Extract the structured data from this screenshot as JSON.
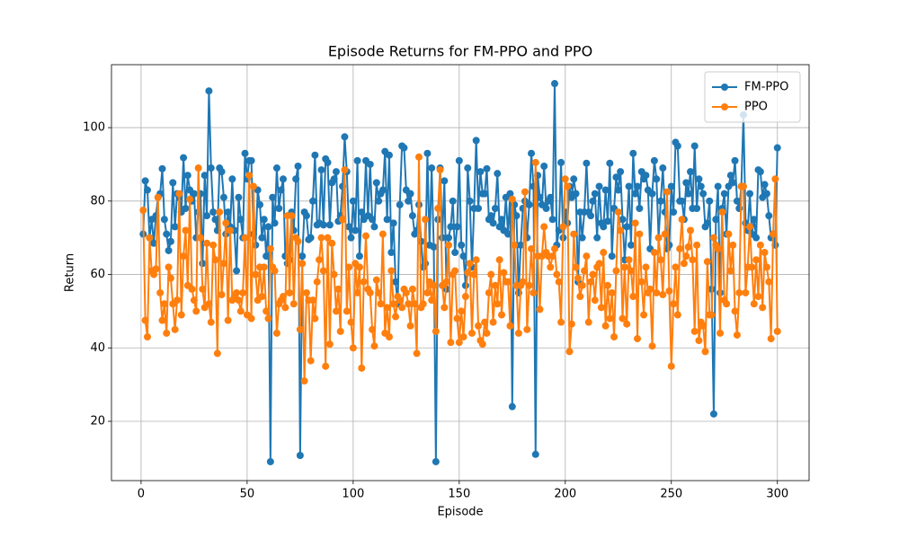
{
  "chart_data": {
    "type": "line",
    "title": "Episode Returns for FM-PPO and PPO",
    "xlabel": "Episode",
    "ylabel": "Return",
    "xlim": [
      -13.95,
      314.95
    ],
    "ylim": [
      3.85,
      117.15
    ],
    "xticks": [
      0,
      50,
      100,
      150,
      200,
      250,
      300
    ],
    "yticks": [
      20,
      40,
      60,
      80,
      100
    ],
    "grid": true,
    "legend": "upper right",
    "x": [
      1,
      2,
      3,
      4,
      5,
      6,
      7,
      8,
      9,
      10,
      11,
      12,
      13,
      14,
      15,
      16,
      17,
      18,
      19,
      20,
      21,
      22,
      23,
      24,
      25,
      26,
      27,
      28,
      29,
      30,
      31,
      32,
      33,
      34,
      35,
      36,
      37,
      38,
      39,
      40,
      41,
      42,
      43,
      44,
      45,
      46,
      47,
      48,
      49,
      50,
      51,
      52,
      53,
      54,
      55,
      56,
      57,
      58,
      59,
      60,
      61,
      62,
      63,
      64,
      65,
      66,
      67,
      68,
      69,
      70,
      71,
      72,
      73,
      74,
      75,
      76,
      77,
      78,
      79,
      80,
      81,
      82,
      83,
      84,
      85,
      86,
      87,
      88,
      89,
      90,
      91,
      92,
      93,
      94,
      95,
      96,
      97,
      98,
      99,
      100,
      101,
      102,
      103,
      104,
      105,
      106,
      107,
      108,
      109,
      110,
      111,
      112,
      113,
      114,
      115,
      116,
      117,
      118,
      119,
      120,
      121,
      122,
      123,
      124,
      125,
      126,
      127,
      128,
      129,
      130,
      131,
      132,
      133,
      134,
      135,
      136,
      137,
      138,
      139,
      140,
      141,
      142,
      143,
      144,
      145,
      146,
      147,
      148,
      149,
      150,
      151,
      152,
      153,
      154,
      155,
      156,
      157,
      158,
      159,
      160,
      161,
      162,
      163,
      164,
      165,
      166,
      167,
      168,
      169,
      170,
      171,
      172,
      173,
      174,
      175,
      176,
      177,
      178,
      179,
      180,
      181,
      182,
      183,
      184,
      185,
      186,
      187,
      188,
      189,
      190,
      191,
      192,
      193,
      194,
      195,
      196,
      197,
      198,
      199,
      200,
      201,
      202,
      203,
      204,
      205,
      206,
      207,
      208,
      209,
      210,
      211,
      212,
      213,
      214,
      215,
      216,
      217,
      218,
      219,
      220,
      221,
      222,
      223,
      224,
      225,
      226,
      227,
      228,
      229,
      230,
      231,
      232,
      233,
      234,
      235,
      236,
      237,
      238,
      239,
      240,
      241,
      242,
      243,
      244,
      245,
      246,
      247,
      248,
      249,
      250,
      251,
      252,
      253,
      254,
      255,
      256,
      257,
      258,
      259,
      260,
      261,
      262,
      263,
      264,
      265,
      266,
      267,
      268,
      269,
      270,
      271,
      272,
      273,
      274,
      275,
      276,
      277,
      278,
      279,
      280,
      281,
      282,
      283,
      284,
      285,
      286,
      287,
      288,
      289,
      290,
      291,
      292,
      293,
      294,
      295,
      296,
      297,
      298,
      299,
      300
    ],
    "series": [
      {
        "name": "FM-PPO",
        "color": "#1f77b4",
        "values": [
          71,
          85.5,
          83,
          70,
          75,
          68.5,
          76,
          81,
          82,
          88.8,
          75,
          71,
          66.5,
          69,
          85,
          73,
          82,
          81,
          77,
          91.8,
          78,
          87,
          83,
          80,
          82,
          70,
          77,
          82,
          63,
          87,
          76,
          110,
          89,
          77,
          75,
          72,
          89,
          88,
          81,
          71,
          77,
          73,
          86,
          72,
          61,
          81,
          75,
          70,
          93,
          86,
          91,
          91,
          71,
          68,
          83,
          79,
          70,
          75,
          65,
          73,
          9,
          81,
          74,
          89,
          78,
          83,
          86,
          65,
          63,
          64,
          77,
          72,
          86,
          89.5,
          10.7,
          65,
          77,
          76,
          69.5,
          70,
          80,
          92.5,
          73.5,
          74,
          88.5,
          73.5,
          91.5,
          90.5,
          73.5,
          85,
          86,
          88,
          74.5,
          76,
          84,
          97.5,
          88,
          73,
          70,
          80,
          72,
          91,
          65,
          77,
          75,
          91,
          76,
          90,
          75,
          73,
          85,
          80,
          82,
          83,
          93.5,
          75,
          92.5,
          66,
          74,
          58,
          52,
          79,
          95,
          94.5,
          83,
          80,
          82,
          76,
          71,
          72,
          79,
          69,
          62,
          63,
          93,
          68,
          89,
          67.5,
          9,
          75,
          89,
          70,
          85.5,
          56,
          70,
          73,
          80,
          66,
          73,
          91,
          68,
          65,
          57,
          89,
          80,
          62,
          78,
          96.5,
          78,
          88,
          82,
          82,
          88.8,
          75,
          76,
          74,
          78,
          87.5,
          73,
          75,
          72,
          81,
          71,
          82,
          24,
          79,
          76,
          55,
          68,
          78,
          80,
          70,
          79,
          93,
          84,
          11,
          87,
          81,
          79,
          89.5,
          78,
          80,
          81,
          75,
          112,
          68,
          72,
          90.5,
          70,
          77,
          74,
          84,
          81,
          86,
          82,
          58,
          77,
          70,
          77,
          90.3,
          77,
          76,
          80,
          82,
          70,
          84,
          74,
          73,
          83,
          74.5,
          90.3,
          65,
          78,
          86.5,
          83,
          88,
          75,
          64,
          73,
          84,
          68,
          93,
          82,
          84,
          78,
          88,
          86,
          87,
          83,
          67,
          82,
          91,
          86,
          70,
          80,
          89,
          77,
          67,
          68,
          84,
          77,
          96,
          95,
          80,
          80,
          75,
          85,
          82,
          88,
          78,
          95,
          78,
          86,
          84,
          82,
          73,
          74,
          80,
          56,
          22,
          75,
          84,
          55,
          78,
          82,
          71,
          84,
          87,
          85,
          91,
          80,
          78,
          84,
          103.5,
          74,
          72,
          82,
          71,
          75,
          70,
          88.5,
          88,
          81,
          84.5,
          82,
          76,
          70,
          71,
          68,
          94.5
        ]
      },
      {
        "name": "PPO",
        "color": "#ff7f0e",
        "values": [
          77.5,
          47.5,
          43,
          70,
          61,
          60,
          61.5,
          81,
          55,
          47.5,
          52,
          44,
          62,
          59,
          52,
          45,
          53,
          82,
          49,
          65,
          72,
          57,
          80.5,
          56,
          53,
          50,
          89,
          70,
          56,
          51,
          68.5,
          52,
          47,
          68,
          64,
          38.5,
          77,
          54.5,
          63,
          74,
          47.5,
          72,
          53,
          54,
          55,
          53,
          50,
          55,
          70,
          49,
          87,
          48,
          84,
          60,
          53,
          62,
          54,
          62,
          50,
          48,
          67,
          62,
          61,
          44,
          52,
          53,
          54,
          51,
          76,
          55,
          76,
          52,
          70,
          69,
          45,
          63,
          31,
          55,
          53,
          36.5,
          53,
          48,
          58,
          64,
          70,
          61,
          35,
          70,
          41,
          68.5,
          60,
          50,
          56,
          44.5,
          75,
          88.5,
          50,
          62,
          47,
          40,
          63,
          55,
          62,
          34.5,
          58,
          70.5,
          56,
          55,
          45,
          40.5,
          58.5,
          55,
          52,
          71,
          44,
          51,
          43,
          61,
          52,
          48.5,
          54,
          53,
          51,
          56,
          55,
          52,
          46,
          56,
          52,
          38.5,
          92,
          51,
          52,
          75,
          55,
          58,
          53,
          57,
          44.5,
          78,
          88.5,
          57,
          51,
          58,
          68,
          41.5,
          60,
          61,
          48,
          41.5,
          50,
          43,
          54,
          60.5,
          63,
          44,
          60,
          64,
          46,
          42,
          41,
          47,
          44,
          55,
          60,
          47,
          57,
          52,
          64,
          49,
          60.5,
          58,
          58,
          46,
          80.5,
          68,
          57,
          44,
          57,
          58,
          82.5,
          45,
          57,
          67,
          55,
          90.5,
          65,
          50.5,
          65,
          73,
          66,
          65,
          62,
          65,
          67,
          60,
          58,
          47,
          73,
          86,
          84,
          39,
          46.5,
          71,
          62,
          59,
          54,
          57,
          61,
          65,
          47,
          58,
          60,
          53,
          62,
          63,
          51,
          66,
          46,
          57,
          48,
          55,
          43,
          61,
          77,
          72,
          48,
          62,
          46.5,
          64,
          61,
          54,
          74,
          42.5,
          71,
          58,
          49,
          62,
          55,
          56,
          40.5,
          66,
          55,
          70,
          64,
          54.5,
          71,
          82.5,
          55.5,
          35,
          52,
          62,
          49,
          67,
          75,
          63,
          65,
          67.5,
          72,
          64,
          44.5,
          68,
          42,
          47,
          46,
          39,
          63.5,
          49,
          49,
          70,
          68,
          67,
          44,
          77,
          53,
          52,
          71,
          61,
          68,
          50,
          43.5,
          55,
          84,
          84,
          55,
          62,
          73,
          62,
          52,
          64,
          54,
          68,
          51,
          66,
          62,
          58,
          42.5,
          71,
          86,
          44.5
        ]
      }
    ]
  }
}
